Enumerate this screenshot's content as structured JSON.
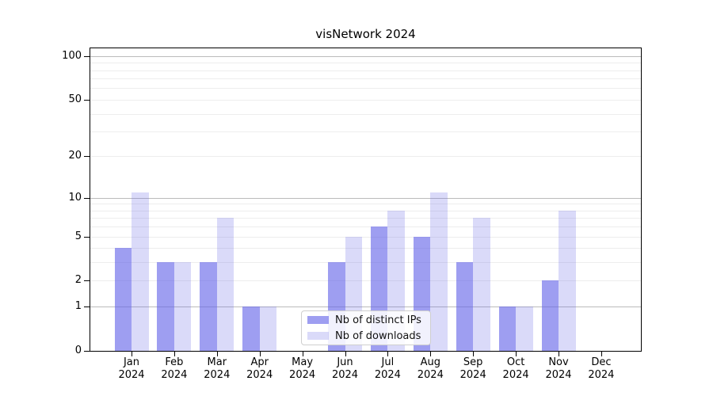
{
  "figure": {
    "title": "visNetwork 2024"
  },
  "chart_data": {
    "type": "bar",
    "title": "visNetwork 2024",
    "categories": [
      "Jan",
      "Feb",
      "Mar",
      "Apr",
      "May",
      "Jun",
      "Jul",
      "Aug",
      "Sep",
      "Oct",
      "Nov",
      "Dec"
    ],
    "category_year": "2024",
    "series": [
      {
        "name": "Nb of distinct IPs",
        "color": "#6363e8",
        "alpha": 0.62,
        "values": [
          4,
          3,
          3,
          1,
          0,
          3,
          6,
          5,
          3,
          1,
          2,
          0
        ]
      },
      {
        "name": "Nb of downloads",
        "color": "#6363e8",
        "alpha": 0.24,
        "values": [
          11,
          3,
          7,
          1,
          0,
          5,
          8,
          11,
          7,
          1,
          8,
          0
        ]
      }
    ],
    "xlabel": "",
    "ylabel": "",
    "yscale": "log1p",
    "ylim": [
      0,
      113
    ],
    "yticks": [
      0,
      1,
      2,
      5,
      10,
      20,
      50,
      100
    ],
    "major_gridlines": [
      1,
      10,
      100
    ],
    "minor_gridlines": [
      2,
      3,
      4,
      5,
      6,
      7,
      8,
      9,
      20,
      30,
      40,
      50,
      60,
      70,
      80,
      90
    ],
    "grid_colors": {
      "major": "#bbbbbb",
      "minor": "#ededed"
    },
    "legend_position": "inside-lower-center",
    "background": "#ffffff"
  }
}
